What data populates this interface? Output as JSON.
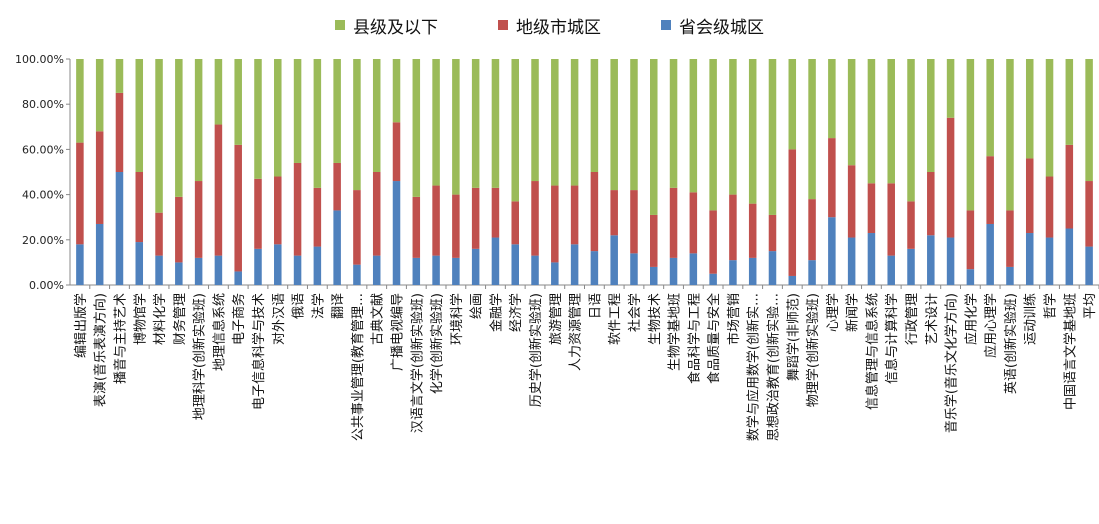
{
  "chart_data": {
    "type": "bar",
    "stacked": true,
    "percent": true,
    "ylim": [
      0,
      100
    ],
    "yticks": [
      "0.00%",
      "20.00%",
      "40.00%",
      "60.00%",
      "80.00%",
      "100.00%"
    ],
    "grid": false,
    "legend_position": "top",
    "categories": [
      "编辑出版学",
      "表演(音乐表演方向)",
      "播音与主持艺术",
      "博物馆学",
      "材料化学",
      "财务管理",
      "地理科学(创新实验班)",
      "地理信息系统",
      "电子商务",
      "电子信息科学与技术",
      "对外汉语",
      "俄语",
      "法学",
      "翻译",
      "公共事业管理(教育管理…",
      "古典文献",
      "广播电视编导",
      "汉语言文学(创新实验班)",
      "化学(创新实验班)",
      "环境科学",
      "绘画",
      "金融学",
      "经济学",
      "历史学(创新实验班)",
      "旅游管理",
      "人力资源管理",
      "日语",
      "软件工程",
      "社会学",
      "生物技术",
      "生物学基地班",
      "食品科学与工程",
      "食品质量与安全",
      "市场营销",
      "数学与应用数学(创新实…",
      "思想政治教育(创新实验…",
      "舞蹈学(非师范)",
      "物理学(创新实验班)",
      "心理学",
      "新闻学",
      "信息管理与信息系统",
      "信息与计算科学",
      "行政管理",
      "艺术设计",
      "音乐学(音乐文化学方向)",
      "应用化学",
      "应用心理学",
      "英语(创新实验班)",
      "运动训练",
      "哲学",
      "中国语言文学基地班",
      "平均"
    ],
    "series": [
      {
        "name": "省会级城区",
        "color": "#4f81bd",
        "values": [
          18,
          27,
          50,
          19,
          13,
          10,
          12,
          13,
          6,
          16,
          18,
          13,
          17,
          33,
          9,
          13,
          46,
          12,
          13,
          12,
          16,
          21,
          18,
          13,
          10,
          18,
          15,
          22,
          14,
          8,
          12,
          14,
          5,
          11,
          12,
          15,
          4,
          11,
          30,
          21,
          23,
          13,
          16,
          22,
          21,
          7,
          27,
          8,
          23,
          21,
          25,
          17
        ]
      },
      {
        "name": "地级市城区",
        "color": "#c0504d",
        "values": [
          45,
          41,
          35,
          31,
          19,
          29,
          34,
          58,
          56,
          31,
          30,
          41,
          26,
          21,
          33,
          37,
          26,
          27,
          31,
          28,
          27,
          22,
          19,
          33,
          34,
          26,
          35,
          20,
          28,
          23,
          31,
          27,
          28,
          29,
          24,
          16,
          56,
          27,
          35,
          32,
          22,
          32,
          21,
          28,
          53,
          26,
          30,
          25,
          33,
          27,
          37,
          29
        ]
      },
      {
        "name": "县级及以下",
        "color": "#9bbb59",
        "values": [
          37,
          32,
          15,
          50,
          68,
          61,
          54,
          29,
          38,
          53,
          52,
          46,
          57,
          46,
          58,
          50,
          28,
          61,
          56,
          60,
          57,
          57,
          63,
          54,
          56,
          56,
          50,
          58,
          58,
          69,
          57,
          59,
          67,
          60,
          64,
          69,
          40,
          62,
          35,
          47,
          55,
          55,
          63,
          50,
          26,
          67,
          43,
          67,
          44,
          52,
          38,
          54
        ]
      }
    ]
  }
}
